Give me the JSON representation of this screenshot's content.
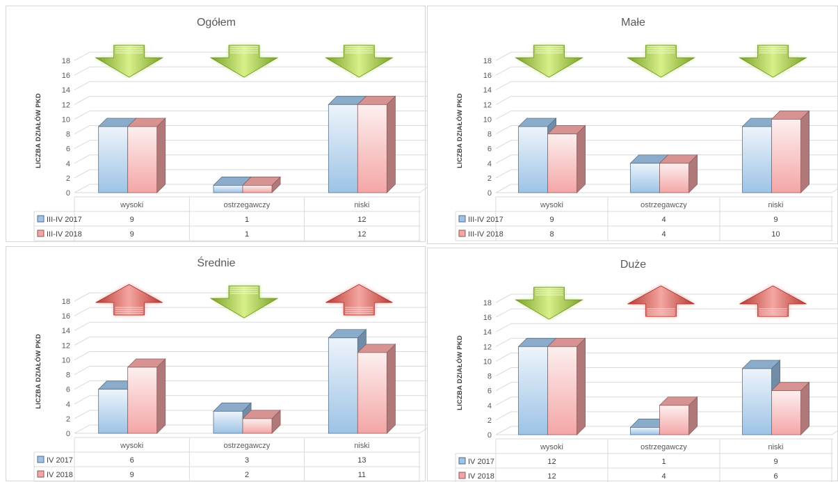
{
  "chart_data": [
    {
      "type": "bar",
      "title": "Ogółem",
      "ylabel": "LICZBA DZIAŁÓW PKD",
      "ylim": [
        0,
        18
      ],
      "yticks": [
        0,
        2,
        4,
        6,
        8,
        10,
        12,
        14,
        16,
        18
      ],
      "categories": [
        "wysoki",
        "ostrzegawczy",
        "niski"
      ],
      "series": [
        {
          "name": "III-IV 2017",
          "values": [
            9,
            1,
            12
          ],
          "color": "#9dc3e6"
        },
        {
          "name": "III-IV 2018",
          "values": [
            9,
            1,
            12
          ],
          "color": "#f4a6a6"
        }
      ],
      "trend_arrows": [
        "down",
        "down",
        "down"
      ],
      "legend": "data-table",
      "grid": true
    },
    {
      "type": "bar",
      "title": "Małe",
      "ylabel": "LICZBA DZIAŁÓW PKD",
      "ylim": [
        0,
        18
      ],
      "yticks": [
        0,
        2,
        4,
        6,
        8,
        10,
        12,
        14,
        16,
        18
      ],
      "categories": [
        "wysoki",
        "ostrzegawczy",
        "niski"
      ],
      "series": [
        {
          "name": "III-IV 2017",
          "values": [
            9,
            4,
            9
          ],
          "color": "#9dc3e6"
        },
        {
          "name": "III-IV 2018",
          "values": [
            8,
            4,
            10
          ],
          "color": "#f4a6a6"
        }
      ],
      "trend_arrows": [
        "down",
        "down",
        "down"
      ],
      "legend": "data-table",
      "grid": true
    },
    {
      "type": "bar",
      "title": "Średnie",
      "ylabel": "LICZBA DZIAŁÓW PKD",
      "ylim": [
        0,
        18
      ],
      "yticks": [
        0,
        2,
        4,
        6,
        8,
        10,
        12,
        14,
        16,
        18
      ],
      "categories": [
        "wysoki",
        "ostrzegawczy",
        "niski"
      ],
      "series": [
        {
          "name": "IV 2017",
          "values": [
            6,
            3,
            13
          ],
          "color": "#9dc3e6"
        },
        {
          "name": "IV 2018",
          "values": [
            9,
            2,
            11
          ],
          "color": "#f4a6a6"
        }
      ],
      "trend_arrows": [
        "up",
        "down",
        "up"
      ],
      "legend": "data-table",
      "grid": true
    },
    {
      "type": "bar",
      "title": "Duże",
      "ylabel": "LICZBA DZIAŁÓW PKD",
      "ylim": [
        0,
        18
      ],
      "yticks": [
        0,
        2,
        4,
        6,
        8,
        10,
        12,
        14,
        16,
        18
      ],
      "categories": [
        "wysoki",
        "ostrzegawczy",
        "niski"
      ],
      "series": [
        {
          "name": "IV 2017",
          "values": [
            12,
            1,
            9
          ],
          "color": "#9dc3e6"
        },
        {
          "name": "IV 2018",
          "values": [
            12,
            4,
            6
          ],
          "color": "#f4a6a6"
        }
      ],
      "trend_arrows": [
        "down",
        "up",
        "up"
      ],
      "legend": "data-table",
      "grid": true
    }
  ],
  "colors": {
    "arrow_down": "#92c13c",
    "arrow_up": "#d9534f",
    "bar_2017": "#9dc3e6",
    "bar_2018": "#f4a6a6"
  }
}
